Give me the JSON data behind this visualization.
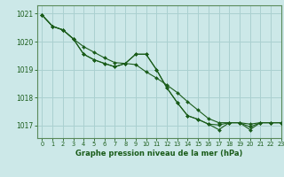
{
  "title": "Graphe pression niveau de la mer (hPa)",
  "background_color": "#cce8e8",
  "grid_color": "#aad0d0",
  "line_color": "#1a5c1a",
  "xlim": [
    -0.5,
    23
  ],
  "ylim": [
    1016.55,
    1021.3
  ],
  "yticks": [
    1017,
    1018,
    1019,
    1020,
    1021
  ],
  "xticks": [
    0,
    1,
    2,
    3,
    4,
    5,
    6,
    7,
    8,
    9,
    10,
    11,
    12,
    13,
    14,
    15,
    16,
    17,
    18,
    19,
    20,
    21,
    22,
    23
  ],
  "line1_x": [
    0,
    1,
    2,
    3,
    4,
    5,
    6,
    7,
    8,
    9,
    10,
    11,
    12,
    13,
    14,
    15,
    16,
    17,
    18,
    19,
    20,
    21,
    22,
    23
  ],
  "line1_y": [
    1020.95,
    1020.55,
    1020.42,
    1020.1,
    1019.82,
    1019.62,
    1019.42,
    1019.25,
    1019.22,
    1019.18,
    1018.92,
    1018.7,
    1018.45,
    1018.18,
    1017.85,
    1017.55,
    1017.25,
    1017.1,
    1017.1,
    1017.1,
    1017.05,
    1017.1,
    1017.1,
    1017.1
  ],
  "line2_x": [
    0,
    1,
    2,
    3,
    4,
    5,
    6,
    7,
    8,
    9,
    10,
    11,
    12,
    13,
    14,
    15,
    16,
    17,
    18,
    19,
    20,
    21,
    22,
    23
  ],
  "line2_y": [
    1020.95,
    1020.55,
    1020.42,
    1020.1,
    1019.55,
    1019.35,
    1019.22,
    1019.1,
    1019.22,
    1019.55,
    1019.55,
    1019.0,
    1018.35,
    1017.82,
    1017.35,
    1017.22,
    1017.05,
    1017.02,
    1017.1,
    1017.1,
    1016.95,
    1017.1,
    1017.1,
    1017.1
  ],
  "line3_x": [
    0,
    1,
    2,
    3,
    4,
    5,
    6,
    7,
    8,
    9,
    10,
    11,
    12,
    13,
    14,
    15,
    16,
    17,
    18,
    19,
    20,
    21,
    22,
    23
  ],
  "line3_y": [
    1020.95,
    1020.55,
    1020.42,
    1020.1,
    1019.55,
    1019.35,
    1019.22,
    1019.1,
    1019.22,
    1019.55,
    1019.55,
    1019.0,
    1018.35,
    1017.82,
    1017.35,
    1017.22,
    1017.05,
    1016.85,
    1017.1,
    1017.1,
    1016.85,
    1017.1,
    1017.1,
    1017.1
  ]
}
